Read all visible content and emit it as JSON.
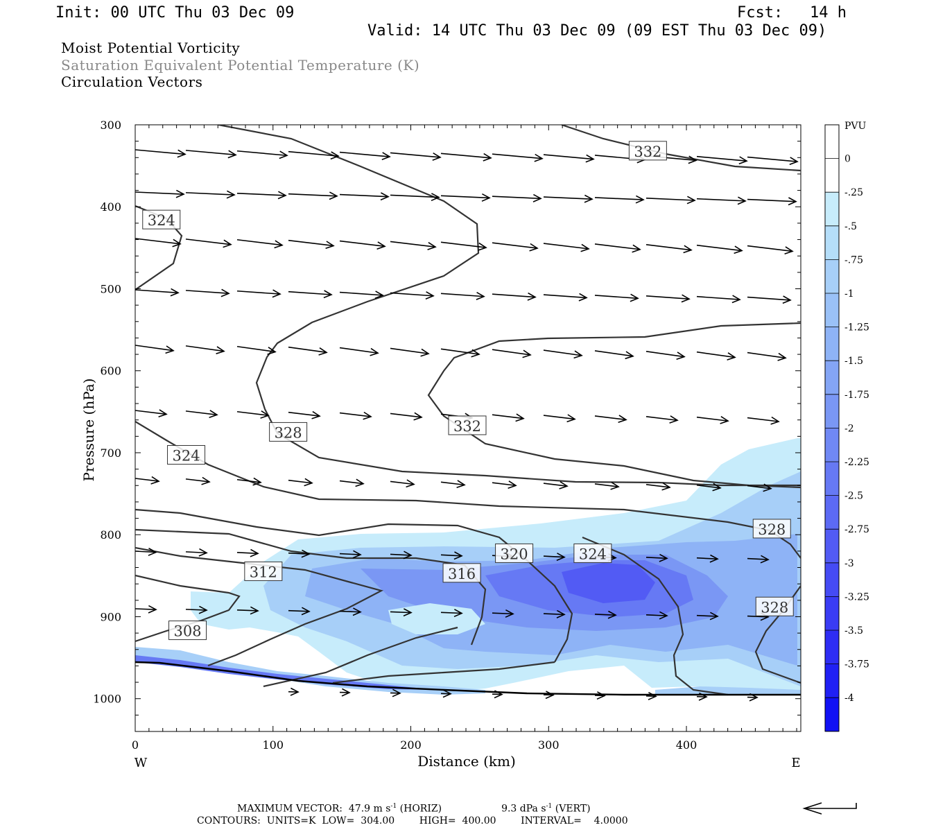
{
  "header": {
    "init": "Init: 00 UTC Thu 03 Dec 09",
    "fcst_label": "Fcst:",
    "fcst_value": "14 h",
    "valid": "Valid: 14 UTC Thu 03 Dec 09 (09 EST Thu 03 Dec 09)",
    "fields": [
      "Moist Potential Vorticity",
      "Saturation Equivalent Potential Temperature (K)",
      "Circulation Vectors"
    ]
  },
  "colors": {
    "field1": "#000000",
    "field2": "#888888",
    "field3": "#000000",
    "contour": "#333333"
  },
  "footer": {
    "max_vector": "MAXIMUM VECTOR:  47.9 m s",
    "max_vector_horiz": " (HORIZ)",
    "max_vector_vert_val": "9.3 dPa s",
    "max_vector_vert": " (VERT)",
    "exp": "-1",
    "contours": "CONTOURS:  UNITS=K  LOW=  304.00        HIGH=  400.00        INTERVAL=    4.0000"
  },
  "chart_data": {
    "type": "cross-section",
    "xlabel": "Distance (km)",
    "ylabel": "Pressure (hPa)",
    "x_ticks": [
      "0",
      "100",
      "200",
      "300",
      "400"
    ],
    "x_end_labels": [
      "W",
      "E"
    ],
    "xlim": [
      0,
      483
    ],
    "y_ticks": [
      "300",
      "400",
      "500",
      "600",
      "700",
      "800",
      "900",
      "1000"
    ],
    "ylim": [
      1040,
      300
    ],
    "colorbar": {
      "unit": "PVU",
      "levels": [
        "0",
        "-.25",
        "-.5",
        "-.75",
        "-1",
        "-1.25",
        "-1.5",
        "-1.75",
        "-2",
        "-2.25",
        "-2.5",
        "-2.75",
        "-3",
        "-3.25",
        "-3.5",
        "-3.75",
        "-4"
      ],
      "colors": [
        "#ffffff",
        "#ffffff",
        "#c7ecfb",
        "#b5def9",
        "#a7cff8",
        "#9ac1f7",
        "#8eb3f6",
        "#84a5f5",
        "#7a97f4",
        "#7088f4",
        "#6679f4",
        "#5c6af4",
        "#525bf4",
        "#454bf4",
        "#3a3cf4",
        "#2e2df4",
        "#2020f4",
        "#1111f4"
      ]
    },
    "contour_labels": [
      {
        "text": "332",
        "x": 372,
        "p": 332
      },
      {
        "text": "324",
        "x": 19,
        "p": 416
      },
      {
        "text": "328",
        "x": 111,
        "p": 675
      },
      {
        "text": "332",
        "x": 241,
        "p": 667
      },
      {
        "text": "324",
        "x": 37,
        "p": 703
      },
      {
        "text": "312",
        "x": 93,
        "p": 845
      },
      {
        "text": "316",
        "x": 237,
        "p": 847
      },
      {
        "text": "320",
        "x": 275,
        "p": 823
      },
      {
        "text": "324",
        "x": 332,
        "p": 823
      },
      {
        "text": "328",
        "x": 462,
        "p": 793
      },
      {
        "text": "328",
        "x": 464,
        "p": 888
      },
      {
        "text": "308",
        "x": 38,
        "p": 917
      }
    ]
  }
}
